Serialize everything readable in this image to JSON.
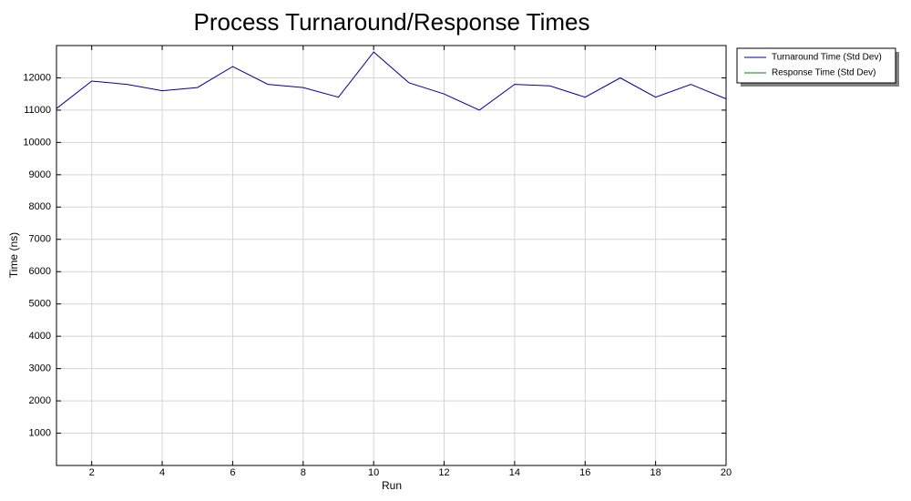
{
  "chart_data": {
    "type": "line",
    "title": "Process Turnaround/Response Times",
    "x_label": "Run",
    "y_label": "Time (ns)",
    "x": [
      1,
      2,
      3,
      4,
      5,
      6,
      7,
      8,
      9,
      10,
      11,
      12,
      13,
      14,
      15,
      16,
      17,
      18,
      19,
      20
    ],
    "series": [
      {
        "name": "Turnaround Time (Std Dev)",
        "color": "#0000a0",
        "values": [
          11050,
          11900,
          11800,
          11600,
          11700,
          12350,
          11800,
          11700,
          11400,
          12800,
          11850,
          11500,
          11000,
          11800,
          11750,
          11400,
          12000,
          11400,
          11800,
          11350
        ]
      },
      {
        "name": "Response Time (Std Dev)",
        "color": "#008000",
        "values": [
          null,
          null,
          null,
          null,
          null,
          null,
          null,
          null,
          null,
          null,
          null,
          null,
          null,
          null,
          null,
          null,
          null,
          null,
          null,
          null
        ]
      }
    ],
    "xlim": [
      1,
      20
    ],
    "xticks": [
      2,
      4,
      6,
      8,
      10,
      12,
      14,
      16,
      18,
      20
    ],
    "ylim": [
      0,
      13000
    ],
    "yticks": [
      1000,
      2000,
      3000,
      4000,
      5000,
      6000,
      7000,
      8000,
      9000,
      10000,
      11000,
      12000
    ],
    "grid": true,
    "legend": "outside-right"
  }
}
